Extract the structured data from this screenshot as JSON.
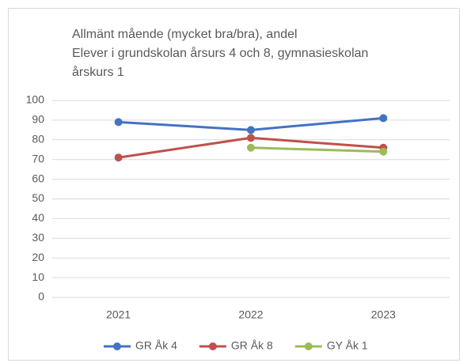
{
  "chart_data": {
    "type": "line",
    "title": [
      "Allmänt mående (mycket bra/bra), andel",
      "Elever i grundskolan årsurs 4 och 8, gymnasieskolan",
      "årskurs 1"
    ],
    "categories": [
      "2021",
      "2022",
      "2023"
    ],
    "series": [
      {
        "name": "GR Åk 4",
        "color": "#4472c4",
        "values": [
          89,
          85,
          91
        ]
      },
      {
        "name": "GR Åk 8",
        "color": "#c0504d",
        "values": [
          71,
          81,
          76
        ]
      },
      {
        "name": "GY Åk 1",
        "color": "#9bbb59",
        "values": [
          null,
          76,
          74
        ]
      }
    ],
    "ylim": [
      0,
      100
    ],
    "yticks": [
      0,
      10,
      20,
      30,
      40,
      50,
      60,
      70,
      80,
      90,
      100
    ],
    "grid": true,
    "legend": "bottom"
  }
}
